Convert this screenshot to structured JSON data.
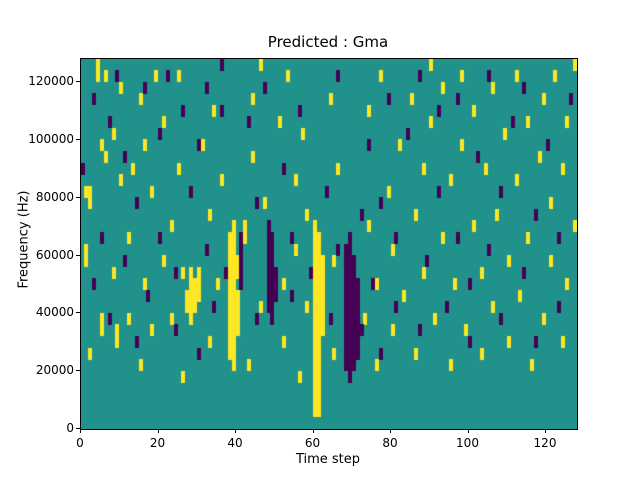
{
  "title": "Predicted : Gma",
  "xlabel": "Time step",
  "ylabel": "Frequency (Hz)",
  "chart_data": {
    "type": "heatmap",
    "x_range": [
      0,
      128
    ],
    "y_range": [
      0,
      128000
    ],
    "x_ticks": [
      0,
      20,
      40,
      60,
      80,
      100,
      120
    ],
    "y_ticks": [
      0,
      20000,
      40000,
      60000,
      80000,
      100000,
      120000
    ],
    "n_time": 128,
    "n_freq": 32,
    "grid": false,
    "legend": "none",
    "colors": {
      "background": "#21918c",
      "high": "#fde725",
      "low": "#440154"
    },
    "cells_high": [
      [
        60,
        1
      ],
      [
        60,
        2
      ],
      [
        60,
        3
      ],
      [
        60,
        4
      ],
      [
        60,
        5
      ],
      [
        60,
        6
      ],
      [
        60,
        7
      ],
      [
        60,
        8
      ],
      [
        60,
        9
      ],
      [
        60,
        10
      ],
      [
        60,
        11
      ],
      [
        60,
        12
      ],
      [
        60,
        13
      ],
      [
        60,
        14
      ],
      [
        60,
        15
      ],
      [
        60,
        16
      ],
      [
        60,
        17
      ],
      [
        61,
        1
      ],
      [
        61,
        2
      ],
      [
        61,
        3
      ],
      [
        61,
        4
      ],
      [
        61,
        5
      ],
      [
        61,
        6
      ],
      [
        61,
        7
      ],
      [
        61,
        8
      ],
      [
        61,
        9
      ],
      [
        61,
        10
      ],
      [
        61,
        11
      ],
      [
        61,
        12
      ],
      [
        61,
        13
      ],
      [
        61,
        14
      ],
      [
        61,
        15
      ],
      [
        61,
        16
      ],
      [
        62,
        8
      ],
      [
        62,
        9
      ],
      [
        62,
        10
      ],
      [
        62,
        11
      ],
      [
        62,
        12
      ],
      [
        62,
        13
      ],
      [
        62,
        14
      ],
      [
        38,
        6
      ],
      [
        38,
        7
      ],
      [
        38,
        8
      ],
      [
        38,
        9
      ],
      [
        38,
        10
      ],
      [
        38,
        11
      ],
      [
        38,
        12
      ],
      [
        38,
        13
      ],
      [
        38,
        14
      ],
      [
        38,
        15
      ],
      [
        38,
        16
      ],
      [
        39,
        5
      ],
      [
        39,
        6
      ],
      [
        39,
        7
      ],
      [
        39,
        8
      ],
      [
        39,
        9
      ],
      [
        39,
        10
      ],
      [
        39,
        11
      ],
      [
        39,
        12
      ],
      [
        39,
        13
      ],
      [
        39,
        14
      ],
      [
        39,
        15
      ],
      [
        39,
        16
      ],
      [
        39,
        17
      ],
      [
        40,
        8
      ],
      [
        40,
        9
      ],
      [
        40,
        10
      ],
      [
        40,
        11
      ],
      [
        40,
        13
      ],
      [
        40,
        14
      ],
      [
        27,
        10
      ],
      [
        27,
        11
      ],
      [
        28,
        9
      ],
      [
        28,
        10
      ],
      [
        28,
        11
      ],
      [
        28,
        12
      ],
      [
        28,
        13
      ],
      [
        29,
        10
      ],
      [
        29,
        11
      ],
      [
        29,
        12
      ],
      [
        30,
        11
      ],
      [
        30,
        12
      ],
      [
        30,
        13
      ],
      [
        1,
        14
      ],
      [
        1,
        15
      ],
      [
        1,
        20
      ],
      [
        2,
        6
      ],
      [
        2,
        19
      ],
      [
        2,
        20
      ],
      [
        4,
        30
      ],
      [
        4,
        31
      ],
      [
        5,
        8
      ],
      [
        5,
        9
      ],
      [
        5,
        24
      ],
      [
        6,
        23
      ],
      [
        6,
        30
      ],
      [
        8,
        13
      ],
      [
        8,
        25
      ],
      [
        9,
        7
      ],
      [
        9,
        8
      ],
      [
        10,
        21
      ],
      [
        10,
        29
      ],
      [
        12,
        9
      ],
      [
        12,
        16
      ],
      [
        13,
        22
      ],
      [
        15,
        5
      ],
      [
        15,
        28
      ],
      [
        16,
        12
      ],
      [
        16,
        24
      ],
      [
        18,
        8
      ],
      [
        18,
        20
      ],
      [
        19,
        30
      ],
      [
        21,
        14
      ],
      [
        21,
        26
      ],
      [
        23,
        9
      ],
      [
        23,
        17
      ],
      [
        25,
        22
      ],
      [
        25,
        30
      ],
      [
        26,
        4
      ],
      [
        26,
        13
      ],
      [
        31,
        24
      ],
      [
        33,
        7
      ],
      [
        33,
        18
      ],
      [
        34,
        27
      ],
      [
        35,
        12
      ],
      [
        36,
        21
      ],
      [
        42,
        16
      ],
      [
        42,
        17
      ],
      [
        43,
        5
      ],
      [
        44,
        23
      ],
      [
        44,
        28
      ],
      [
        46,
        10
      ],
      [
        46,
        31
      ],
      [
        47,
        19
      ],
      [
        51,
        26
      ],
      [
        52,
        7
      ],
      [
        52,
        12
      ],
      [
        53,
        30
      ],
      [
        55,
        15
      ],
      [
        55,
        21
      ],
      [
        56,
        4
      ],
      [
        57,
        25
      ],
      [
        58,
        10
      ],
      [
        58,
        18
      ],
      [
        64,
        28
      ],
      [
        65,
        6
      ],
      [
        65,
        14
      ],
      [
        66,
        22
      ],
      [
        73,
        9
      ],
      [
        74,
        17
      ],
      [
        74,
        27
      ],
      [
        76,
        5
      ],
      [
        76,
        12
      ],
      [
        77,
        30
      ],
      [
        79,
        20
      ],
      [
        80,
        8
      ],
      [
        80,
        15
      ],
      [
        82,
        24
      ],
      [
        83,
        11
      ],
      [
        85,
        28
      ],
      [
        86,
        6
      ],
      [
        86,
        18
      ],
      [
        88,
        13
      ],
      [
        88,
        22
      ],
      [
        90,
        26
      ],
      [
        90,
        31
      ],
      [
        91,
        9
      ],
      [
        93,
        16
      ],
      [
        93,
        29
      ],
      [
        95,
        5
      ],
      [
        95,
        21
      ],
      [
        96,
        12
      ],
      [
        98,
        24
      ],
      [
        98,
        30
      ],
      [
        99,
        8
      ],
      [
        101,
        17
      ],
      [
        101,
        27
      ],
      [
        103,
        6
      ],
      [
        103,
        13
      ],
      [
        104,
        22
      ],
      [
        106,
        10
      ],
      [
        106,
        29
      ],
      [
        107,
        18
      ],
      [
        109,
        25
      ],
      [
        110,
        7
      ],
      [
        110,
        14
      ],
      [
        112,
        21
      ],
      [
        112,
        30
      ],
      [
        113,
        11
      ],
      [
        115,
        16
      ],
      [
        115,
        26
      ],
      [
        116,
        5
      ],
      [
        118,
        23
      ],
      [
        119,
        9
      ],
      [
        119,
        28
      ],
      [
        121,
        14
      ],
      [
        121,
        19
      ],
      [
        122,
        30
      ],
      [
        124,
        7
      ],
      [
        124,
        22
      ],
      [
        125,
        12
      ],
      [
        125,
        26
      ],
      [
        127,
        17
      ],
      [
        127,
        31
      ]
    ],
    "cells_low": [
      [
        68,
        5
      ],
      [
        68,
        6
      ],
      [
        68,
        7
      ],
      [
        68,
        8
      ],
      [
        68,
        9
      ],
      [
        68,
        10
      ],
      [
        68,
        11
      ],
      [
        68,
        12
      ],
      [
        68,
        13
      ],
      [
        68,
        14
      ],
      [
        68,
        15
      ],
      [
        69,
        4
      ],
      [
        69,
        5
      ],
      [
        69,
        6
      ],
      [
        69,
        7
      ],
      [
        69,
        8
      ],
      [
        69,
        9
      ],
      [
        69,
        10
      ],
      [
        69,
        11
      ],
      [
        69,
        12
      ],
      [
        69,
        13
      ],
      [
        69,
        14
      ],
      [
        69,
        15
      ],
      [
        69,
        16
      ],
      [
        70,
        5
      ],
      [
        70,
        6
      ],
      [
        70,
        7
      ],
      [
        70,
        8
      ],
      [
        70,
        9
      ],
      [
        70,
        10
      ],
      [
        70,
        11
      ],
      [
        70,
        12
      ],
      [
        70,
        13
      ],
      [
        70,
        14
      ],
      [
        71,
        6
      ],
      [
        71,
        7
      ],
      [
        71,
        8
      ],
      [
        71,
        9
      ],
      [
        71,
        10
      ],
      [
        71,
        11
      ],
      [
        71,
        12
      ],
      [
        48,
        10
      ],
      [
        48,
        11
      ],
      [
        48,
        12
      ],
      [
        48,
        13
      ],
      [
        48,
        14
      ],
      [
        48,
        15
      ],
      [
        48,
        16
      ],
      [
        48,
        17
      ],
      [
        49,
        9
      ],
      [
        49,
        10
      ],
      [
        49,
        11
      ],
      [
        49,
        12
      ],
      [
        49,
        13
      ],
      [
        49,
        14
      ],
      [
        49,
        15
      ],
      [
        49,
        16
      ],
      [
        50,
        11
      ],
      [
        50,
        12
      ],
      [
        50,
        13
      ],
      [
        41,
        12
      ],
      [
        41,
        13
      ],
      [
        41,
        14
      ],
      [
        41,
        15
      ],
      [
        41,
        16
      ],
      [
        0,
        22
      ],
      [
        3,
        12
      ],
      [
        3,
        28
      ],
      [
        5,
        16
      ],
      [
        7,
        9
      ],
      [
        7,
        26
      ],
      [
        9,
        30
      ],
      [
        11,
        14
      ],
      [
        11,
        23
      ],
      [
        14,
        7
      ],
      [
        14,
        19
      ],
      [
        16,
        29
      ],
      [
        17,
        11
      ],
      [
        20,
        16
      ],
      [
        20,
        25
      ],
      [
        22,
        30
      ],
      [
        24,
        8
      ],
      [
        24,
        13
      ],
      [
        26,
        27
      ],
      [
        28,
        20
      ],
      [
        30,
        6
      ],
      [
        30,
        24
      ],
      [
        32,
        15
      ],
      [
        32,
        29
      ],
      [
        34,
        10
      ],
      [
        36,
        27
      ],
      [
        36,
        31
      ],
      [
        37,
        13
      ],
      [
        43,
        26
      ],
      [
        45,
        9
      ],
      [
        45,
        19
      ],
      [
        47,
        29
      ],
      [
        52,
        22
      ],
      [
        54,
        11
      ],
      [
        54,
        16
      ],
      [
        56,
        27
      ],
      [
        59,
        13
      ],
      [
        63,
        20
      ],
      [
        64,
        9
      ],
      [
        66,
        15
      ],
      [
        66,
        30
      ],
      [
        72,
        8
      ],
      [
        72,
        18
      ],
      [
        74,
        24
      ],
      [
        75,
        12
      ],
      [
        77,
        6
      ],
      [
        77,
        19
      ],
      [
        79,
        28
      ],
      [
        81,
        10
      ],
      [
        81,
        16
      ],
      [
        84,
        25
      ],
      [
        87,
        8
      ],
      [
        87,
        30
      ],
      [
        89,
        14
      ],
      [
        92,
        20
      ],
      [
        92,
        27
      ],
      [
        94,
        10
      ],
      [
        97,
        16
      ],
      [
        97,
        28
      ],
      [
        100,
        7
      ],
      [
        100,
        12
      ],
      [
        102,
        23
      ],
      [
        105,
        15
      ],
      [
        105,
        30
      ],
      [
        108,
        9
      ],
      [
        108,
        20
      ],
      [
        111,
        26
      ],
      [
        114,
        13
      ],
      [
        114,
        29
      ],
      [
        117,
        7
      ],
      [
        117,
        18
      ],
      [
        120,
        24
      ],
      [
        123,
        10
      ],
      [
        123,
        16
      ],
      [
        126,
        28
      ]
    ]
  }
}
